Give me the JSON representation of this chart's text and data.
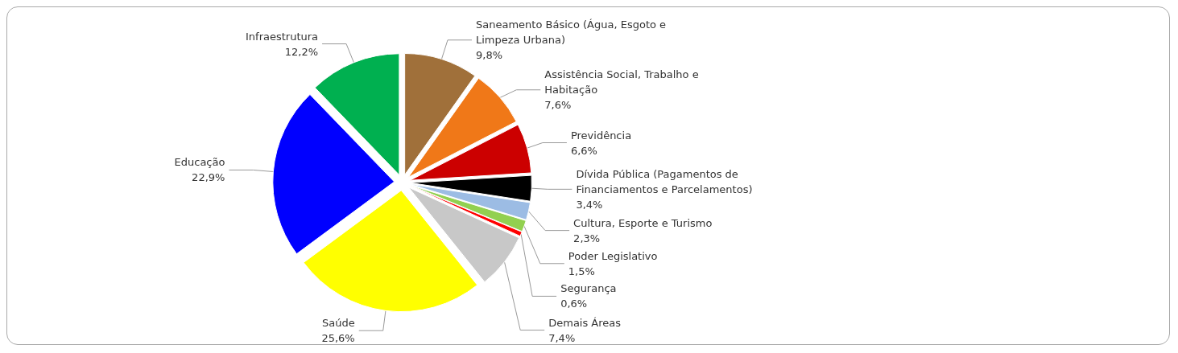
{
  "chart_data": {
    "type": "pie",
    "categories": [
      "Saneamento Básico (Água, Esgoto e Limpeza Urbana)",
      "Assistência Social, Trabalho e Habitação",
      "Previdência",
      "Dívida Pública (Pagamentos de Financiamentos e Parcelamentos)",
      "Cultura, Esporte e Turismo",
      "Poder Legislativo",
      "Segurança",
      "Demais Áreas",
      "Saúde",
      "Educação",
      "Infraestrutura"
    ],
    "values": [
      9.8,
      7.6,
      6.6,
      3.4,
      2.3,
      1.5,
      0.6,
      7.4,
      25.6,
      22.9,
      12.2
    ],
    "colors": [
      "#a0703a",
      "#f07818",
      "#cc0000",
      "#000000",
      "#9cbce4",
      "#92d050",
      "#ff0000",
      "#c8c8c8",
      "#ffff00",
      "#0000ff",
      "#00b050"
    ],
    "value_labels": [
      "9,8%",
      "7,6%",
      "6,6%",
      "3,4%",
      "2,3%",
      "1,5%",
      "0,6%",
      "7,4%",
      "25,6%",
      "22,9%",
      "12,2%"
    ]
  }
}
